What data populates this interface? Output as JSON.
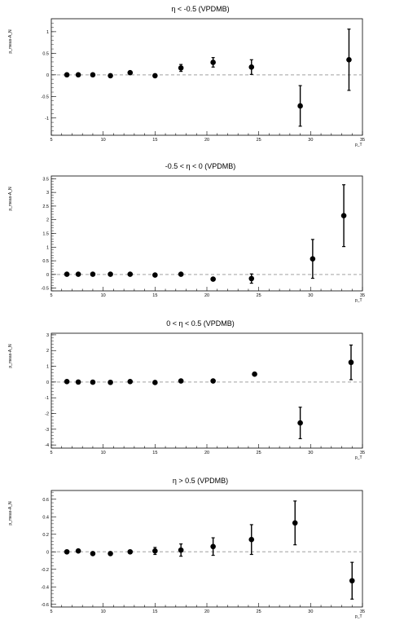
{
  "chart_data": [
    {
      "type": "scatter",
      "title": "η < -0.5 (VPDMB)",
      "xlabel": "p_T",
      "ylabel": "p_meas-A_N",
      "xlim": [
        5,
        35
      ],
      "ylim": [
        -1.4,
        1.3
      ],
      "xticks": [
        5,
        10,
        15,
        20,
        25,
        30,
        35
      ],
      "yticks": [
        -1,
        -0.5,
        0,
        0.5,
        1
      ],
      "ytick_labels": [
        "-1",
        "-0.5",
        "0",
        "0.5",
        "1"
      ],
      "reference_line": 0,
      "points": [
        {
          "x": 6.5,
          "y": 0.0,
          "err": 0.01
        },
        {
          "x": 7.6,
          "y": 0.0,
          "err": 0.01
        },
        {
          "x": 9.0,
          "y": 0.0,
          "err": 0.01
        },
        {
          "x": 10.7,
          "y": -0.02,
          "err": 0.02
        },
        {
          "x": 12.6,
          "y": 0.05,
          "err": 0.02
        },
        {
          "x": 15.0,
          "y": -0.02,
          "err": 0.02
        },
        {
          "x": 17.5,
          "y": 0.16,
          "err": 0.08
        },
        {
          "x": 20.6,
          "y": 0.29,
          "err": 0.11
        },
        {
          "x": 24.3,
          "y": 0.18,
          "err": 0.17
        },
        {
          "x": 29.0,
          "y": -0.72,
          "err": 0.47
        },
        {
          "x": 33.7,
          "y": 0.35,
          "err": 0.71
        }
      ]
    },
    {
      "type": "scatter",
      "title": "-0.5 < η < 0 (VPDMB)",
      "xlabel": "p_T",
      "ylabel": "p_meas-A_N",
      "xlim": [
        5,
        35
      ],
      "ylim": [
        -0.6,
        3.6
      ],
      "xticks": [
        5,
        10,
        15,
        20,
        25,
        30,
        35
      ],
      "yticks": [
        -0.5,
        0,
        0.5,
        1,
        1.5,
        2,
        2.5,
        3,
        3.5
      ],
      "ytick_labels": [
        "-0.5",
        "0",
        "0.5",
        "1",
        "1.5",
        "2",
        "2.5",
        "3",
        "3.5"
      ],
      "reference_line": 0,
      "points": [
        {
          "x": 6.5,
          "y": 0.01,
          "err": 0.01
        },
        {
          "x": 7.6,
          "y": 0.01,
          "err": 0.01
        },
        {
          "x": 9.0,
          "y": 0.01,
          "err": 0.01
        },
        {
          "x": 10.7,
          "y": 0.01,
          "err": 0.01
        },
        {
          "x": 12.6,
          "y": 0.01,
          "err": 0.02
        },
        {
          "x": 15.0,
          "y": -0.02,
          "err": 0.02
        },
        {
          "x": 17.5,
          "y": 0.01,
          "err": 0.03
        },
        {
          "x": 20.6,
          "y": -0.17,
          "err": 0.04
        },
        {
          "x": 24.3,
          "y": -0.15,
          "err": 0.17
        },
        {
          "x": 30.2,
          "y": 0.57,
          "err": 0.71
        },
        {
          "x": 33.2,
          "y": 2.15,
          "err": 1.13
        }
      ]
    },
    {
      "type": "scatter",
      "title": "0 < η < 0.5 (VPDMB)",
      "xlabel": "p_T",
      "ylabel": "p_meas-A_N",
      "xlim": [
        5,
        35
      ],
      "ylim": [
        -4.2,
        3.1
      ],
      "xticks": [
        5,
        10,
        15,
        20,
        25,
        30,
        35
      ],
      "yticks": [
        -4,
        -3,
        -2,
        -1,
        0,
        1,
        2,
        3
      ],
      "ytick_labels": [
        "-4",
        "-3",
        "-2",
        "-1",
        "0",
        "1",
        "2",
        "3"
      ],
      "reference_line": 0,
      "points": [
        {
          "x": 6.5,
          "y": 0.03,
          "err": 0.01
        },
        {
          "x": 7.6,
          "y": 0.0,
          "err": 0.01
        },
        {
          "x": 9.0,
          "y": -0.01,
          "err": 0.01
        },
        {
          "x": 10.7,
          "y": -0.02,
          "err": 0.01
        },
        {
          "x": 12.6,
          "y": 0.03,
          "err": 0.02
        },
        {
          "x": 15.0,
          "y": -0.03,
          "err": 0.02
        },
        {
          "x": 17.5,
          "y": 0.07,
          "err": 0.04
        },
        {
          "x": 20.6,
          "y": 0.07,
          "err": 0.05
        },
        {
          "x": 24.6,
          "y": 0.5,
          "err": 0.08
        },
        {
          "x": 29.0,
          "y": -2.6,
          "err": 1.0
        },
        {
          "x": 33.9,
          "y": 1.25,
          "err": 1.1
        }
      ]
    },
    {
      "type": "scatter",
      "title": "η > 0.5 (VPDMB)",
      "xlabel": "p_T",
      "ylabel": "p_meas-A_N",
      "xlim": [
        5,
        35
      ],
      "ylim": [
        -0.63,
        0.7
      ],
      "xticks": [
        5,
        10,
        15,
        20,
        25,
        30,
        35
      ],
      "yticks": [
        -0.6,
        -0.4,
        -0.2,
        0,
        0.2,
        0.4,
        0.6
      ],
      "ytick_labels": [
        "-0.6",
        "-0.4",
        "-0.2",
        "0",
        "0.2",
        "0.4",
        "0.6"
      ],
      "reference_line": 0,
      "points": [
        {
          "x": 6.5,
          "y": 0.0,
          "err": 0.01
        },
        {
          "x": 7.6,
          "y": 0.01,
          "err": 0.01
        },
        {
          "x": 9.0,
          "y": -0.02,
          "err": 0.01
        },
        {
          "x": 10.7,
          "y": -0.02,
          "err": 0.01
        },
        {
          "x": 12.6,
          "y": 0.0,
          "err": 0.02
        },
        {
          "x": 15.0,
          "y": 0.01,
          "err": 0.04
        },
        {
          "x": 17.5,
          "y": 0.02,
          "err": 0.07
        },
        {
          "x": 20.6,
          "y": 0.06,
          "err": 0.1
        },
        {
          "x": 24.3,
          "y": 0.14,
          "err": 0.17
        },
        {
          "x": 28.5,
          "y": 0.33,
          "err": 0.25
        },
        {
          "x": 34.0,
          "y": -0.33,
          "err": 0.21
        }
      ]
    }
  ]
}
